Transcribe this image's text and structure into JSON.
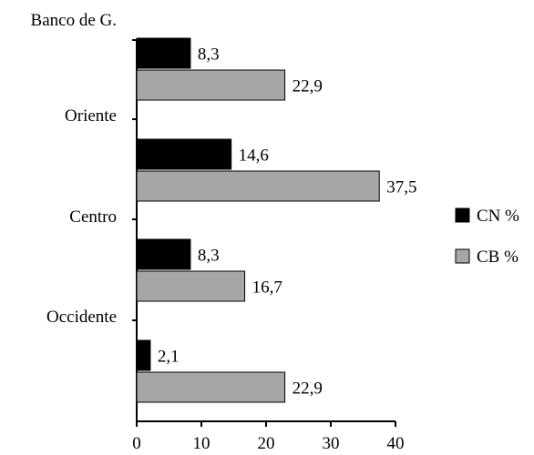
{
  "chart_data": {
    "type": "bar",
    "orientation": "horizontal",
    "title": "",
    "xlabel": "",
    "ylabel": "",
    "categories": [
      "Banco de G.",
      "Oriente",
      "Centro",
      "Occidente"
    ],
    "series": [
      {
        "name": "CN %",
        "values": [
          8.3,
          14.6,
          8.3,
          2.1
        ],
        "labels": [
          "8,3",
          "14,6",
          "8,3",
          "2,1"
        ],
        "color": "#000000"
      },
      {
        "name": "CB %",
        "values": [
          22.9,
          37.5,
          16.7,
          22.9
        ],
        "labels": [
          "22,9",
          "37,5",
          "16,7",
          "22,9"
        ],
        "color": "#a6a6a6"
      }
    ],
    "xlim": [
      0,
      40
    ],
    "xticks": [
      "0",
      "10",
      "20",
      "30",
      "40"
    ],
    "grid": false,
    "legend_position": "right"
  }
}
